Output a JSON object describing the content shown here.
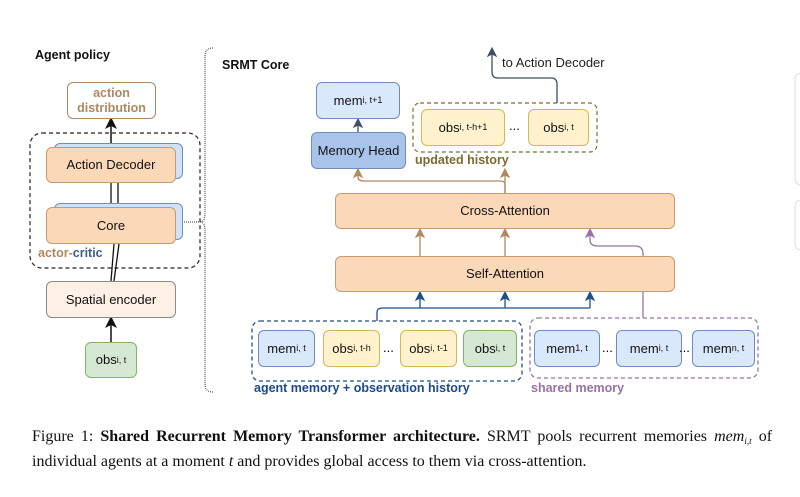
{
  "agent_policy": {
    "title": "Agent policy",
    "action_distribution": "action distribution",
    "action_decoder": "Action Decoder",
    "core": "Core",
    "actor_label": "actor",
    "dash": "-",
    "critic_label": "critic",
    "spatial_encoder": "Spatial encoder",
    "obs": {
      "main": "obs",
      "sub": "i, t"
    }
  },
  "srmt_core": {
    "title": "SRMT Core",
    "mem_next": {
      "main": "mem",
      "sub": "i, t+1"
    },
    "memory_head": "Memory Head",
    "updated_history": {
      "label": "updated history",
      "items": [
        {
          "main": "obs",
          "sub": "i, t-h+1"
        },
        {
          "main": "obs",
          "sub": "i, t"
        }
      ],
      "ellipsis": "..."
    },
    "to_action_decoder": "to Action Decoder",
    "cross_attention": "Cross-Attention",
    "self_attention": "Self-Attention",
    "agent_memory": {
      "label": "agent memory + observation history",
      "items": [
        {
          "main": "mem",
          "sub": "i, t"
        },
        {
          "main": "obs",
          "sub": "i, t-h"
        },
        {
          "main": "obs",
          "sub": "i, t-1"
        },
        {
          "main": "obs",
          "sub": "i, t"
        }
      ],
      "ellipsis": "..."
    },
    "shared_memory": {
      "label": "shared memory",
      "items": [
        {
          "main": "mem",
          "sub": "1, t"
        },
        {
          "main": "mem",
          "sub": "i, t"
        },
        {
          "main": "mem",
          "sub": "n, t"
        }
      ],
      "ellipsis": "..."
    }
  },
  "caption": {
    "prefix": "Figure 1: ",
    "bold": "Shared Recurrent Memory Transformer architecture.",
    "text1": " SRMT pools recurrent memories ",
    "math_mem": "mem",
    "math_sub": "i,t",
    "text2": " of individual agents at a moment ",
    "math_t": "t",
    "text3": " and provides global access to them via cross-attention."
  },
  "colors": {
    "orange": "#fbd9b8",
    "blue": "#dae8fc",
    "yellow": "#fff2cc",
    "green": "#d5e8d4",
    "tan_arrow": "#b08860",
    "blue_arrow": "#1f4e8c",
    "purple": "#9673a6",
    "history_olive": "#7a6a2e"
  }
}
